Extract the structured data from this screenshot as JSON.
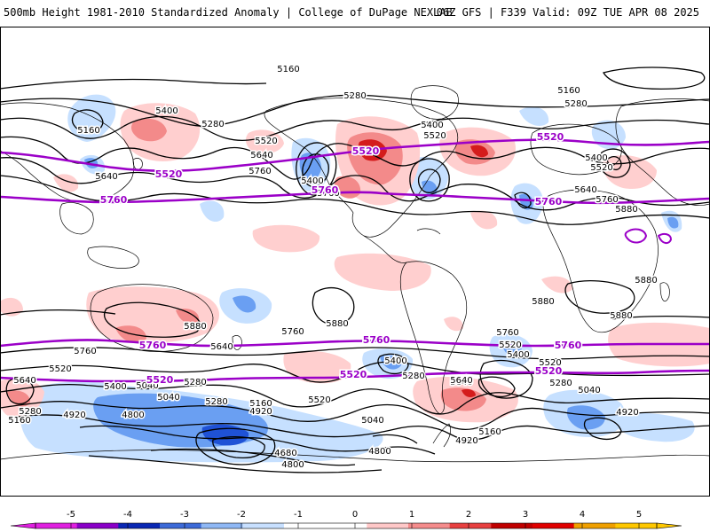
{
  "header": {
    "title": "500mb Height 1981-2010 Standardized Anomaly | College of DuPage NEXLAB",
    "run_info": "06Z GFS | F339 Valid: 09Z TUE APR 08 2025"
  },
  "colors": {
    "contour": "#000000",
    "highlight_contour": "#9b00c8",
    "coast": "#000000",
    "neg_light": "#c6e0ff",
    "neg_mid": "#6a9ff2",
    "neg_strong": "#1f52d6",
    "pos_light": "#ffcfcf",
    "pos_mid": "#f38a8a",
    "pos_strong": "#d41c1c"
  },
  "contour_labels": [
    {
      "id": "n-5160-a",
      "text": "5160"
    },
    {
      "id": "n-5400-a",
      "text": "5400"
    },
    {
      "id": "n-5280-a",
      "text": "5280"
    },
    {
      "id": "n-5160-b",
      "text": "5160"
    },
    {
      "id": "n-5640-a",
      "text": "5640"
    },
    {
      "id": "n-5520-a",
      "text": "5520"
    },
    {
      "id": "n-5640-b",
      "text": "5640"
    },
    {
      "id": "n-5760-a",
      "text": "5760"
    },
    {
      "id": "n-5400-b",
      "text": "5400"
    },
    {
      "id": "n-5280-b",
      "text": "5280"
    },
    {
      "id": "n-5400-c",
      "text": "5400"
    },
    {
      "id": "n-5520-b",
      "text": "5520"
    },
    {
      "id": "n-5160-c",
      "text": "5160"
    },
    {
      "id": "n-5280-c",
      "text": "5280"
    },
    {
      "id": "n-5400-d",
      "text": "5400"
    },
    {
      "id": "n-5520-c",
      "text": "5520"
    },
    {
      "id": "n-5640-c",
      "text": "5640"
    },
    {
      "id": "n-5760-b",
      "text": "5760"
    },
    {
      "id": "n-5880-a",
      "text": "5880"
    },
    {
      "id": "n-5760-c",
      "text": "5760"
    },
    {
      "id": "s-5880-a",
      "text": "5880"
    },
    {
      "id": "s-5880-b",
      "text": "5880"
    },
    {
      "id": "s-5880-c",
      "text": "5880"
    },
    {
      "id": "s-5880-d",
      "text": "5880"
    },
    {
      "id": "s-5880-e",
      "text": "5880"
    },
    {
      "id": "s-5760-a",
      "text": "5760"
    },
    {
      "id": "s-5760-b",
      "text": "5760"
    },
    {
      "id": "s-5640-a",
      "text": "5640"
    },
    {
      "id": "s-5760-c",
      "text": "5760"
    },
    {
      "id": "s-5520-a",
      "text": "5520"
    },
    {
      "id": "s-5400-a",
      "text": "5400"
    },
    {
      "id": "s-5640-b",
      "text": "5640"
    },
    {
      "id": "s-5520-b",
      "text": "5520"
    },
    {
      "id": "s-5400-b",
      "text": "5400"
    },
    {
      "id": "s-5280-a",
      "text": "5280"
    },
    {
      "id": "s-5640-c",
      "text": "5640"
    },
    {
      "id": "s-5520-c",
      "text": "5520"
    },
    {
      "id": "s-5400-c",
      "text": "5400"
    },
    {
      "id": "s-5280-b",
      "text": "5280"
    },
    {
      "id": "s-5160-a",
      "text": "5160"
    },
    {
      "id": "s-5040-a",
      "text": "5040"
    },
    {
      "id": "s-4920-a",
      "text": "4920"
    },
    {
      "id": "s-4800-a",
      "text": "4800"
    },
    {
      "id": "s-5040-b",
      "text": "5040"
    },
    {
      "id": "s-5280-c",
      "text": "5280"
    },
    {
      "id": "s-5160-b",
      "text": "5160"
    },
    {
      "id": "s-4920-b",
      "text": "4920"
    },
    {
      "id": "s-5520-d",
      "text": "5520"
    },
    {
      "id": "s-5280-d",
      "text": "5280"
    },
    {
      "id": "s-5040-c",
      "text": "5040"
    },
    {
      "id": "s-4680-a",
      "text": "4680"
    },
    {
      "id": "s-4800-b",
      "text": "4800"
    },
    {
      "id": "s-4800-c",
      "text": "4800"
    },
    {
      "id": "s-5160-c",
      "text": "5160"
    },
    {
      "id": "s-5280-e",
      "text": "5280"
    },
    {
      "id": "s-5040-d",
      "text": "5040"
    },
    {
      "id": "s-4920-c",
      "text": "4920"
    },
    {
      "id": "s-4920-d",
      "text": "4920"
    },
    {
      "id": "s-5640-d",
      "text": "5640"
    }
  ],
  "highlight_labels": [
    {
      "id": "p-5520-a",
      "text": "5520"
    },
    {
      "id": "p-5520-b",
      "text": "5520"
    },
    {
      "id": "p-5520-c",
      "text": "5520"
    },
    {
      "id": "p-5760-a",
      "text": "5760"
    },
    {
      "id": "p-5760-b",
      "text": "5760"
    },
    {
      "id": "p-5760-c",
      "text": "5760"
    },
    {
      "id": "p-5760-d",
      "text": "5760"
    },
    {
      "id": "p-5760-e",
      "text": "5760"
    },
    {
      "id": "p-5760-f",
      "text": "5760"
    },
    {
      "id": "p-5520-d",
      "text": "5520"
    },
    {
      "id": "p-5520-e",
      "text": "5520"
    },
    {
      "id": "p-5520-f",
      "text": "5520"
    }
  ],
  "legend": {
    "ticks": [
      "-5",
      "-4",
      "-3",
      "-2",
      "-1",
      "0",
      "1",
      "2",
      "3",
      "4",
      "5"
    ],
    "colors": [
      "#e020e0",
      "#8a00c8",
      "#0a28b4",
      "#3c6ad8",
      "#8fb8f5",
      "#c8e0ff",
      "#ffffff",
      "#ffffff",
      "#ffc8c8",
      "#f58c8c",
      "#e84040",
      "#c00000",
      "#e00000",
      "#f0a000",
      "#ffc800"
    ]
  }
}
